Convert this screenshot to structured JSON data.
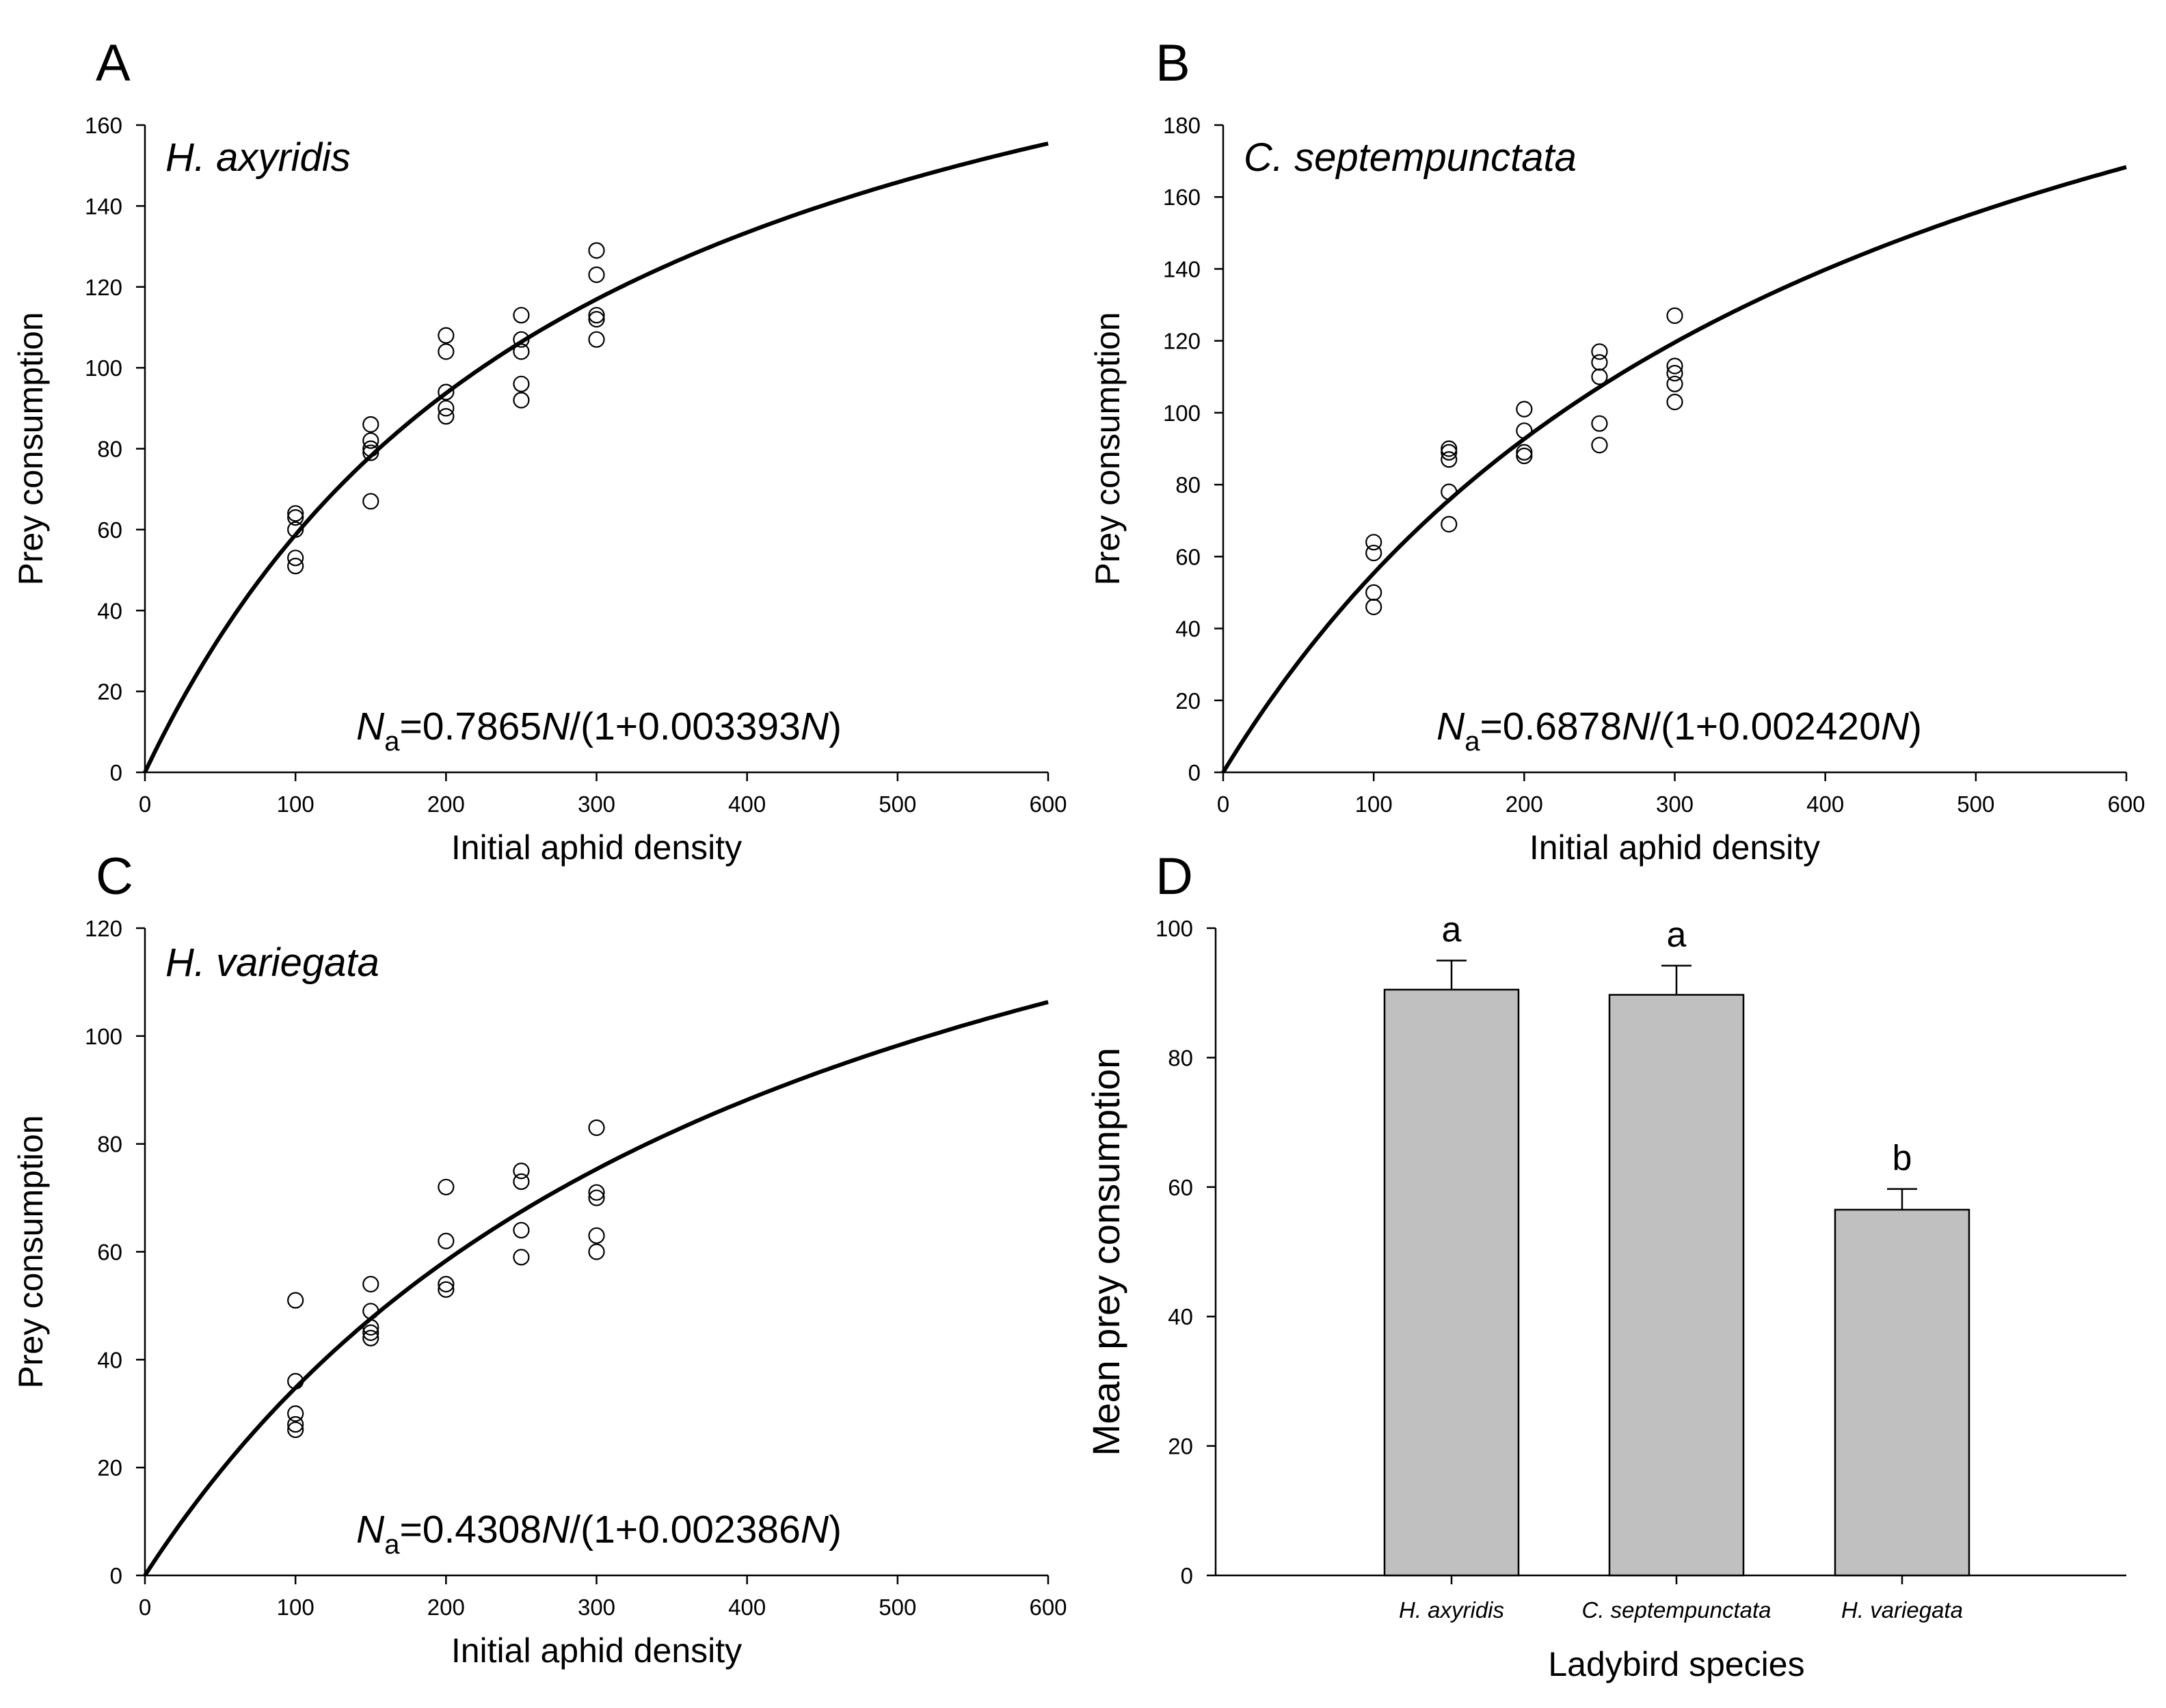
{
  "chart_data": [
    {
      "type": "scatter",
      "panel": "A",
      "species": "H. axyridis",
      "equation": {
        "lhs_var": "N",
        "lhs_sub": "a",
        "text1": "=0.7865",
        "var1": "N",
        "text2": "/(1+0.003393",
        "var2": "N",
        "text3": ")"
      },
      "curve": {
        "a": 0.7865,
        "b": 0.003393
      },
      "xlabel": "Initial aphid density",
      "ylabel": "Prey consumption",
      "xlim": [
        0,
        600
      ],
      "ylim": [
        0,
        160
      ],
      "xticks": [
        0,
        100,
        200,
        300,
        400,
        500,
        600
      ],
      "yticks": [
        0,
        20,
        40,
        60,
        80,
        100,
        120,
        140,
        160
      ],
      "points": [
        [
          100,
          51
        ],
        [
          100,
          53
        ],
        [
          100,
          60
        ],
        [
          100,
          63
        ],
        [
          100,
          64
        ],
        [
          150,
          67
        ],
        [
          150,
          79
        ],
        [
          150,
          80
        ],
        [
          150,
          82
        ],
        [
          150,
          86
        ],
        [
          200,
          88
        ],
        [
          200,
          90
        ],
        [
          200,
          94
        ],
        [
          200,
          104
        ],
        [
          200,
          108
        ],
        [
          250,
          92
        ],
        [
          250,
          96
        ],
        [
          250,
          104
        ],
        [
          250,
          107
        ],
        [
          250,
          113
        ],
        [
          300,
          107
        ],
        [
          300,
          112
        ],
        [
          300,
          113
        ],
        [
          300,
          123
        ],
        [
          300,
          129
        ]
      ]
    },
    {
      "type": "scatter",
      "panel": "B",
      "species": "C. septempunctata",
      "equation": {
        "lhs_var": "N",
        "lhs_sub": "a",
        "text1": "=0.6878",
        "var1": "N",
        "text2": "/(1+0.002420",
        "var2": "N",
        "text3": ")"
      },
      "curve": {
        "a": 0.6878,
        "b": 0.00242
      },
      "xlabel": "Initial aphid density",
      "ylabel": "Prey consumption",
      "xlim": [
        0,
        600
      ],
      "ylim": [
        0,
        180
      ],
      "xticks": [
        0,
        100,
        200,
        300,
        400,
        500,
        600
      ],
      "yticks": [
        0,
        20,
        40,
        60,
        80,
        100,
        120,
        140,
        160,
        180
      ],
      "points": [
        [
          100,
          46
        ],
        [
          100,
          50
        ],
        [
          100,
          61
        ],
        [
          100,
          64
        ],
        [
          150,
          69
        ],
        [
          150,
          78
        ],
        [
          150,
          87
        ],
        [
          150,
          89
        ],
        [
          150,
          90
        ],
        [
          200,
          88
        ],
        [
          200,
          89
        ],
        [
          200,
          95
        ],
        [
          200,
          101
        ],
        [
          250,
          91
        ],
        [
          250,
          97
        ],
        [
          250,
          110
        ],
        [
          250,
          114
        ],
        [
          250,
          117
        ],
        [
          300,
          103
        ],
        [
          300,
          108
        ],
        [
          300,
          111
        ],
        [
          300,
          113
        ],
        [
          300,
          127
        ]
      ]
    },
    {
      "type": "scatter",
      "panel": "C",
      "species": "H. variegata",
      "equation": {
        "lhs_var": "N",
        "lhs_sub": "a",
        "text1": "=0.4308",
        "var1": "N",
        "text2": "/(1+0.002386",
        "var2": "N",
        "text3": ")"
      },
      "curve": {
        "a": 0.4308,
        "b": 0.002386
      },
      "xlabel": "Initial aphid density",
      "ylabel": "Prey consumption",
      "xlim": [
        0,
        600
      ],
      "ylim": [
        0,
        120
      ],
      "xticks": [
        0,
        100,
        200,
        300,
        400,
        500,
        600
      ],
      "yticks": [
        0,
        20,
        40,
        60,
        80,
        100,
        120
      ],
      "points": [
        [
          100,
          27
        ],
        [
          100,
          28
        ],
        [
          100,
          30
        ],
        [
          100,
          36
        ],
        [
          100,
          51
        ],
        [
          150,
          44
        ],
        [
          150,
          45
        ],
        [
          150,
          46
        ],
        [
          150,
          49
        ],
        [
          150,
          54
        ],
        [
          200,
          53
        ],
        [
          200,
          54
        ],
        [
          200,
          62
        ],
        [
          200,
          72
        ],
        [
          250,
          59
        ],
        [
          250,
          64
        ],
        [
          250,
          73
        ],
        [
          250,
          75
        ],
        [
          300,
          60
        ],
        [
          300,
          63
        ],
        [
          300,
          70
        ],
        [
          300,
          71
        ],
        [
          300,
          83
        ]
      ]
    },
    {
      "type": "bar",
      "panel": "D",
      "categories": [
        "H. axyridis",
        "C. septempunctata",
        "H. variegata"
      ],
      "values": [
        90.5,
        89.7,
        56.5
      ],
      "errors": [
        4.5,
        4.5,
        3.2
      ],
      "significance": [
        "a",
        "a",
        "b"
      ],
      "xlabel": "Ladybird species",
      "ylabel": "Mean prey consumption",
      "ylim": [
        0,
        100
      ],
      "yticks": [
        0,
        20,
        40,
        60,
        80,
        100
      ],
      "bar_color": "#c0c0c0"
    }
  ]
}
